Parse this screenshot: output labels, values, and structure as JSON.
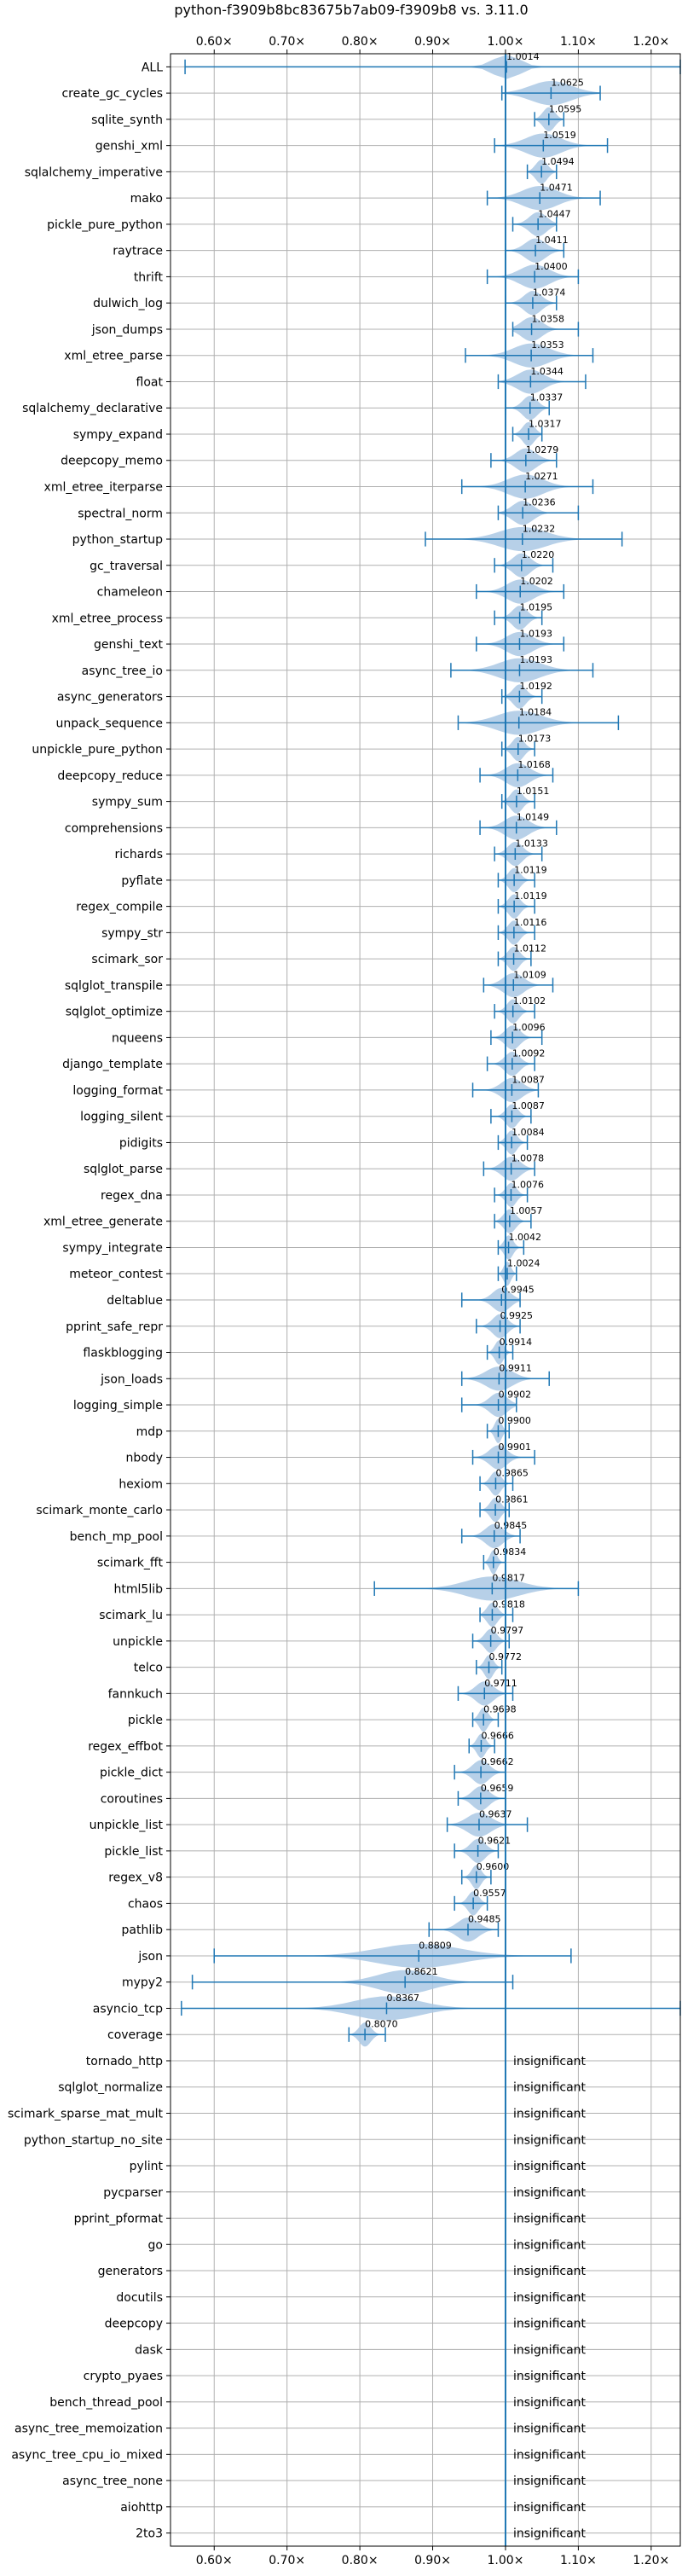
{
  "chart_data": {
    "type": "violin",
    "title": "python-f3909b8bc83675b7ab09-f3909b8 vs. 3.11.0",
    "xlim": [
      0.54,
      1.24
    ],
    "xticks": [
      0.6,
      0.7,
      0.8,
      0.9,
      1.0,
      1.1,
      1.2
    ],
    "xtick_labels": [
      "0.60×",
      "0.70×",
      "0.80×",
      "0.90×",
      "1.00×",
      "1.10×",
      "1.20×"
    ],
    "reference_line": 1.0,
    "grid": true,
    "colors": {
      "violin": "#aac8e4",
      "line": "#1f77b4",
      "grid": "#b0b0b0"
    },
    "insignificant_label": "insignificant",
    "benchmarks": [
      {
        "name": "ALL",
        "value": 1.0014,
        "label": "1.0014",
        "min": 0.56,
        "max": 1.24,
        "spread": 0.045
      },
      {
        "name": "create_gc_cycles",
        "value": 1.0625,
        "label": "1.0625",
        "min": 0.995,
        "max": 1.13,
        "spread": 0.07
      },
      {
        "name": "sqlite_synth",
        "value": 1.0595,
        "label": "1.0595",
        "min": 1.04,
        "max": 1.08,
        "spread": 0.02
      },
      {
        "name": "genshi_xml",
        "value": 1.0519,
        "label": "1.0519",
        "min": 0.985,
        "max": 1.14,
        "spread": 0.06
      },
      {
        "name": "sqlalchemy_imperative",
        "value": 1.0494,
        "label": "1.0494",
        "min": 1.03,
        "max": 1.07,
        "spread": 0.02
      },
      {
        "name": "mako",
        "value": 1.0471,
        "label": "1.0471",
        "min": 0.975,
        "max": 1.13,
        "spread": 0.06
      },
      {
        "name": "pickle_pure_python",
        "value": 1.0447,
        "label": "1.0447",
        "min": 1.01,
        "max": 1.07,
        "spread": 0.03
      },
      {
        "name": "raytrace",
        "value": 1.0411,
        "label": "1.0411",
        "min": 1.0,
        "max": 1.08,
        "spread": 0.035
      },
      {
        "name": "thrift",
        "value": 1.04,
        "label": "1.0400",
        "min": 0.975,
        "max": 1.1,
        "spread": 0.05
      },
      {
        "name": "dulwich_log",
        "value": 1.0374,
        "label": "1.0374",
        "min": 1.0,
        "max": 1.07,
        "spread": 0.03
      },
      {
        "name": "json_dumps",
        "value": 1.0358,
        "label": "1.0358",
        "min": 1.01,
        "max": 1.1,
        "spread": 0.035
      },
      {
        "name": "xml_etree_parse",
        "value": 1.0353,
        "label": "1.0353",
        "min": 0.945,
        "max": 1.12,
        "spread": 0.06
      },
      {
        "name": "float",
        "value": 1.0344,
        "label": "1.0344",
        "min": 0.99,
        "max": 1.11,
        "spread": 0.045
      },
      {
        "name": "sqlalchemy_declarative",
        "value": 1.0337,
        "label": "1.0337",
        "min": 1.0,
        "max": 1.06,
        "spread": 0.025
      },
      {
        "name": "sympy_expand",
        "value": 1.0317,
        "label": "1.0317",
        "min": 1.01,
        "max": 1.05,
        "spread": 0.02
      },
      {
        "name": "deepcopy_memo",
        "value": 1.0279,
        "label": "1.0279",
        "min": 0.98,
        "max": 1.07,
        "spread": 0.035
      },
      {
        "name": "xml_etree_iterparse",
        "value": 1.0271,
        "label": "1.0271",
        "min": 0.94,
        "max": 1.12,
        "spread": 0.06
      },
      {
        "name": "spectral_norm",
        "value": 1.0236,
        "label": "1.0236",
        "min": 0.99,
        "max": 1.1,
        "spread": 0.035
      },
      {
        "name": "python_startup",
        "value": 1.0232,
        "label": "1.0232",
        "min": 0.89,
        "max": 1.16,
        "spread": 0.08
      },
      {
        "name": "gc_traversal",
        "value": 1.022,
        "label": "1.0220",
        "min": 0.985,
        "max": 1.065,
        "spread": 0.03
      },
      {
        "name": "chameleon",
        "value": 1.0202,
        "label": "1.0202",
        "min": 0.96,
        "max": 1.08,
        "spread": 0.045
      },
      {
        "name": "xml_etree_process",
        "value": 1.0195,
        "label": "1.0195",
        "min": 0.985,
        "max": 1.05,
        "spread": 0.025
      },
      {
        "name": "genshi_text",
        "value": 1.0193,
        "label": "1.0193",
        "min": 0.96,
        "max": 1.08,
        "spread": 0.045
      },
      {
        "name": "async_tree_io",
        "value": 1.0193,
        "label": "1.0193",
        "min": 0.925,
        "max": 1.12,
        "spread": 0.07
      },
      {
        "name": "async_generators",
        "value": 1.0192,
        "label": "1.0192",
        "min": 0.995,
        "max": 1.05,
        "spread": 0.022
      },
      {
        "name": "unpack_sequence",
        "value": 1.0184,
        "label": "1.0184",
        "min": 0.935,
        "max": 1.155,
        "spread": 0.075
      },
      {
        "name": "unpickle_pure_python",
        "value": 1.0173,
        "label": "1.0173",
        "min": 0.995,
        "max": 1.04,
        "spread": 0.02
      },
      {
        "name": "deepcopy_reduce",
        "value": 1.0168,
        "label": "1.0168",
        "min": 0.965,
        "max": 1.065,
        "spread": 0.04
      },
      {
        "name": "sympy_sum",
        "value": 1.0151,
        "label": "1.0151",
        "min": 0.995,
        "max": 1.04,
        "spread": 0.02
      },
      {
        "name": "comprehensions",
        "value": 1.0149,
        "label": "1.0149",
        "min": 0.965,
        "max": 1.07,
        "spread": 0.04
      },
      {
        "name": "richards",
        "value": 1.0133,
        "label": "1.0133",
        "min": 0.985,
        "max": 1.05,
        "spread": 0.025
      },
      {
        "name": "pyflate",
        "value": 1.0119,
        "label": "1.0119",
        "min": 0.99,
        "max": 1.04,
        "spread": 0.02
      },
      {
        "name": "regex_compile",
        "value": 1.0119,
        "label": "1.0119",
        "min": 0.99,
        "max": 1.04,
        "spread": 0.02
      },
      {
        "name": "sympy_str",
        "value": 1.0116,
        "label": "1.0116",
        "min": 0.99,
        "max": 1.04,
        "spread": 0.02
      },
      {
        "name": "scimark_sor",
        "value": 1.0112,
        "label": "1.0112",
        "min": 0.99,
        "max": 1.035,
        "spread": 0.02
      },
      {
        "name": "sqlglot_transpile",
        "value": 1.0109,
        "label": "1.0109",
        "min": 0.97,
        "max": 1.065,
        "spread": 0.035
      },
      {
        "name": "sqlglot_optimize",
        "value": 1.0102,
        "label": "1.0102",
        "min": 0.985,
        "max": 1.04,
        "spread": 0.02
      },
      {
        "name": "nqueens",
        "value": 1.0096,
        "label": "1.0096",
        "min": 0.98,
        "max": 1.05,
        "spread": 0.025
      },
      {
        "name": "django_template",
        "value": 1.0092,
        "label": "1.0092",
        "min": 0.975,
        "max": 1.04,
        "spread": 0.025
      },
      {
        "name": "logging_format",
        "value": 1.0087,
        "label": "1.0087",
        "min": 0.955,
        "max": 1.045,
        "spread": 0.035
      },
      {
        "name": "logging_silent",
        "value": 1.0087,
        "label": "1.0087",
        "min": 0.98,
        "max": 1.035,
        "spread": 0.02
      },
      {
        "name": "pidigits",
        "value": 1.0084,
        "label": "1.0084",
        "min": 0.99,
        "max": 1.03,
        "spread": 0.018
      },
      {
        "name": "sqlglot_parse",
        "value": 1.0078,
        "label": "1.0078",
        "min": 0.97,
        "max": 1.04,
        "spread": 0.03
      },
      {
        "name": "regex_dna",
        "value": 1.0076,
        "label": "1.0076",
        "min": 0.985,
        "max": 1.03,
        "spread": 0.018
      },
      {
        "name": "xml_etree_generate",
        "value": 1.0057,
        "label": "1.0057",
        "min": 0.985,
        "max": 1.035,
        "spread": 0.02
      },
      {
        "name": "sympy_integrate",
        "value": 1.0042,
        "label": "1.0042",
        "min": 0.99,
        "max": 1.025,
        "spread": 0.015
      },
      {
        "name": "meteor_contest",
        "value": 1.0024,
        "label": "1.0024",
        "min": 0.99,
        "max": 1.015,
        "spread": 0.012
      },
      {
        "name": "deltablue",
        "value": 0.9945,
        "label": "0.9945",
        "min": 0.94,
        "max": 1.02,
        "spread": 0.03
      },
      {
        "name": "pprint_safe_repr",
        "value": 0.9925,
        "label": "0.9925",
        "min": 0.96,
        "max": 1.02,
        "spread": 0.025
      },
      {
        "name": "flaskblogging",
        "value": 0.9914,
        "label": "0.9914",
        "min": 0.975,
        "max": 1.01,
        "spread": 0.015
      },
      {
        "name": "json_loads",
        "value": 0.9911,
        "label": "0.9911",
        "min": 0.94,
        "max": 1.06,
        "spread": 0.045
      },
      {
        "name": "logging_simple",
        "value": 0.9902,
        "label": "0.9902",
        "min": 0.94,
        "max": 1.015,
        "spread": 0.03
      },
      {
        "name": "mdp",
        "value": 0.99,
        "label": "0.9900",
        "min": 0.975,
        "max": 1.005,
        "spread": 0.012
      },
      {
        "name": "nbody",
        "value": 0.9901,
        "label": "0.9901",
        "min": 0.955,
        "max": 1.04,
        "spread": 0.03
      },
      {
        "name": "hexiom",
        "value": 0.9865,
        "label": "0.9865",
        "min": 0.965,
        "max": 1.01,
        "spread": 0.018
      },
      {
        "name": "scimark_monte_carlo",
        "value": 0.9861,
        "label": "0.9861",
        "min": 0.965,
        "max": 1.005,
        "spread": 0.018
      },
      {
        "name": "bench_mp_pool",
        "value": 0.9845,
        "label": "0.9845",
        "min": 0.94,
        "max": 1.02,
        "spread": 0.03
      },
      {
        "name": "scimark_fft",
        "value": 0.9834,
        "label": "0.9834",
        "min": 0.97,
        "max": 1.0,
        "spread": 0.012
      },
      {
        "name": "html5lib",
        "value": 0.9817,
        "label": "0.9817",
        "min": 0.82,
        "max": 1.1,
        "spread": 0.09
      },
      {
        "name": "scimark_lu",
        "value": 0.9818,
        "label": "0.9818",
        "min": 0.965,
        "max": 1.01,
        "spread": 0.018
      },
      {
        "name": "unpickle",
        "value": 0.9797,
        "label": "0.9797",
        "min": 0.955,
        "max": 1.005,
        "spread": 0.02
      },
      {
        "name": "telco",
        "value": 0.9772,
        "label": "0.9772",
        "min": 0.96,
        "max": 0.995,
        "spread": 0.015
      },
      {
        "name": "fannkuch",
        "value": 0.9711,
        "label": "0.9711",
        "min": 0.935,
        "max": 1.01,
        "spread": 0.03
      },
      {
        "name": "pickle",
        "value": 0.9698,
        "label": "0.9698",
        "min": 0.955,
        "max": 0.99,
        "spread": 0.015
      },
      {
        "name": "regex_effbot",
        "value": 0.9666,
        "label": "0.9666",
        "min": 0.95,
        "max": 0.985,
        "spread": 0.015
      },
      {
        "name": "pickle_dict",
        "value": 0.9662,
        "label": "0.9662",
        "min": 0.93,
        "max": 1.0,
        "spread": 0.028
      },
      {
        "name": "coroutines",
        "value": 0.9659,
        "label": "0.9659",
        "min": 0.935,
        "max": 1.0,
        "spread": 0.028
      },
      {
        "name": "unpickle_list",
        "value": 0.9637,
        "label": "0.9637",
        "min": 0.92,
        "max": 1.03,
        "spread": 0.04
      },
      {
        "name": "pickle_list",
        "value": 0.9621,
        "label": "0.9621",
        "min": 0.93,
        "max": 0.99,
        "spread": 0.025
      },
      {
        "name": "regex_v8",
        "value": 0.96,
        "label": "0.9600",
        "min": 0.94,
        "max": 0.98,
        "spread": 0.016
      },
      {
        "name": "chaos",
        "value": 0.9557,
        "label": "0.9557",
        "min": 0.93,
        "max": 0.975,
        "spread": 0.018
      },
      {
        "name": "pathlib",
        "value": 0.9485,
        "label": "0.9485",
        "min": 0.895,
        "max": 0.99,
        "spread": 0.035
      },
      {
        "name": "json",
        "value": 0.8809,
        "label": "0.8809",
        "min": 0.6,
        "max": 1.09,
        "spread": 0.14
      },
      {
        "name": "mypy2",
        "value": 0.8621,
        "label": "0.8621",
        "min": 0.57,
        "max": 1.01,
        "spread": 0.09
      },
      {
        "name": "asyncio_tcp",
        "value": 0.8367,
        "label": "0.8367",
        "min": 0.555,
        "max": 1.24,
        "spread": 0.11
      },
      {
        "name": "coverage",
        "value": 0.807,
        "label": "0.8070",
        "min": 0.785,
        "max": 0.835,
        "spread": 0.02
      },
      {
        "name": "tornado_http",
        "value": null
      },
      {
        "name": "sqlglot_normalize",
        "value": null
      },
      {
        "name": "scimark_sparse_mat_mult",
        "value": null
      },
      {
        "name": "python_startup_no_site",
        "value": null
      },
      {
        "name": "pylint",
        "value": null
      },
      {
        "name": "pycparser",
        "value": null
      },
      {
        "name": "pprint_pformat",
        "value": null
      },
      {
        "name": "go",
        "value": null
      },
      {
        "name": "generators",
        "value": null
      },
      {
        "name": "docutils",
        "value": null
      },
      {
        "name": "deepcopy",
        "value": null
      },
      {
        "name": "dask",
        "value": null
      },
      {
        "name": "crypto_pyaes",
        "value": null
      },
      {
        "name": "bench_thread_pool",
        "value": null
      },
      {
        "name": "async_tree_memoization",
        "value": null
      },
      {
        "name": "async_tree_cpu_io_mixed",
        "value": null
      },
      {
        "name": "async_tree_none",
        "value": null
      },
      {
        "name": "aiohttp",
        "value": null
      },
      {
        "name": "2to3",
        "value": null
      }
    ]
  }
}
